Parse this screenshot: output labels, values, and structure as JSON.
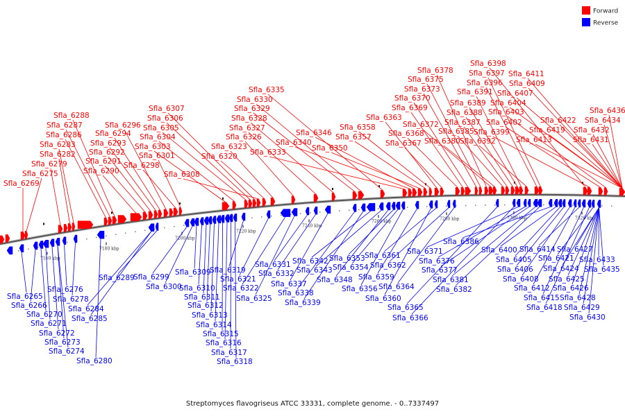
{
  "legend": [
    {
      "label": "Forward",
      "color": "#ff0000"
    },
    {
      "label": "Reverse",
      "color": "#0000ff"
    }
  ],
  "caption": "Streptomyces flavogriseus ATCC 33331, complete genome. - 0..7337497",
  "ticks": [
    "7160 kbp",
    "7180 kbp",
    "7200 kbp",
    "7220 kbp",
    "7240 kbp",
    "7260 kbp",
    "7280 kbp",
    "7300 kbp",
    "7320 kbp"
  ],
  "forward_genes": [
    "Sfla_6269",
    "Sfla_6275",
    "Sfla_6279",
    "Sfla_6282",
    "Sfla_6283",
    "Sfla_6286",
    "Sfla_6287",
    "Sfla_6288",
    "Sfla_6290",
    "Sfla_6291",
    "Sfla_6292",
    "Sfla_6293",
    "Sfla_6294",
    "Sfla_6296",
    "Sfla_6298",
    "Sfla_6301",
    "Sfla_6303",
    "Sfla_6304",
    "Sfla_6305",
    "Sfla_6306",
    "Sfla_6307",
    "Sfla_6308",
    "Sfla_6320",
    "Sfla_6323",
    "Sfla_6326",
    "Sfla_6327",
    "Sfla_6328",
    "Sfla_6329",
    "Sfla_6330",
    "Sfla_6335",
    "Sfla_6333",
    "Sfla_6340",
    "Sfla_6346",
    "Sfla_6350",
    "Sfla_6357",
    "Sfla_6358",
    "Sfla_6363",
    "Sfla_6367",
    "Sfla_6368",
    "Sfla_6369",
    "Sfla_6370",
    "Sfla_6373",
    "Sfla_6375",
    "Sfla_6378",
    "Sfla_6372",
    "Sfla_6380",
    "Sfla_6385",
    "Sfla_6387",
    "Sfla_6388",
    "Sfla_6389",
    "Sfla_6391",
    "Sfla_6392",
    "Sfla_6396",
    "Sfla_6397",
    "Sfla_6398",
    "Sfla_6399",
    "Sfla_6402",
    "Sfla_6403",
    "Sfla_6404",
    "Sfla_6407",
    "Sfla_6409",
    "Sfla_6411",
    "Sfla_6413",
    "Sfla_6419",
    "Sfla_6422",
    "Sfla_6431",
    "Sfla_6432",
    "Sfla_6434",
    "Sfla_6436"
  ],
  "reverse_genes": [
    "Sfla_6265",
    "Sfla_6266",
    "Sfla_6270",
    "Sfla_6271",
    "Sfla_6272",
    "Sfla_6273",
    "Sfla_6274",
    "Sfla_6276",
    "Sfla_6278",
    "Sfla_6280",
    "Sfla_6284",
    "Sfla_6285",
    "Sfla_6289",
    "Sfla_6299",
    "Sfla_6300",
    "Sfla_6309",
    "Sfla_6310",
    "Sfla_6311",
    "Sfla_6312",
    "Sfla_6313",
    "Sfla_6314",
    "Sfla_6315",
    "Sfla_6316",
    "Sfla_6317",
    "Sfla_6318",
    "Sfla_6319",
    "Sfla_6321",
    "Sfla_6322",
    "Sfla_6325",
    "Sfla_6331",
    "Sfla_6332",
    "Sfla_6337",
    "Sfla_6338",
    "Sfla_6339",
    "Sfla_6342",
    "Sfla_6343",
    "Sfla_6348",
    "Sfla_6353",
    "Sfla_6354",
    "Sfla_6356",
    "Sfla_6359",
    "Sfla_6360",
    "Sfla_6361",
    "Sfla_6362",
    "Sfla_6364",
    "Sfla_6365",
    "Sfla_6366",
    "Sfla_6371",
    "Sfla_6376",
    "Sfla_6377",
    "Sfla_6381",
    "Sfla_6382",
    "Sfla_6386",
    "Sfla_6400",
    "Sfla_6405",
    "Sfla_6406",
    "Sfla_6408",
    "Sfla_6412",
    "Sfla_6414",
    "Sfla_6415",
    "Sfla_6418",
    "Sfla_6421",
    "Sfla_6424",
    "Sfla_6425",
    "Sfla_6426",
    "Sfla_6427",
    "Sfla_6428",
    "Sfla_6429",
    "Sfla_6430",
    "Sfla_6433",
    "Sfla_6435"
  ]
}
